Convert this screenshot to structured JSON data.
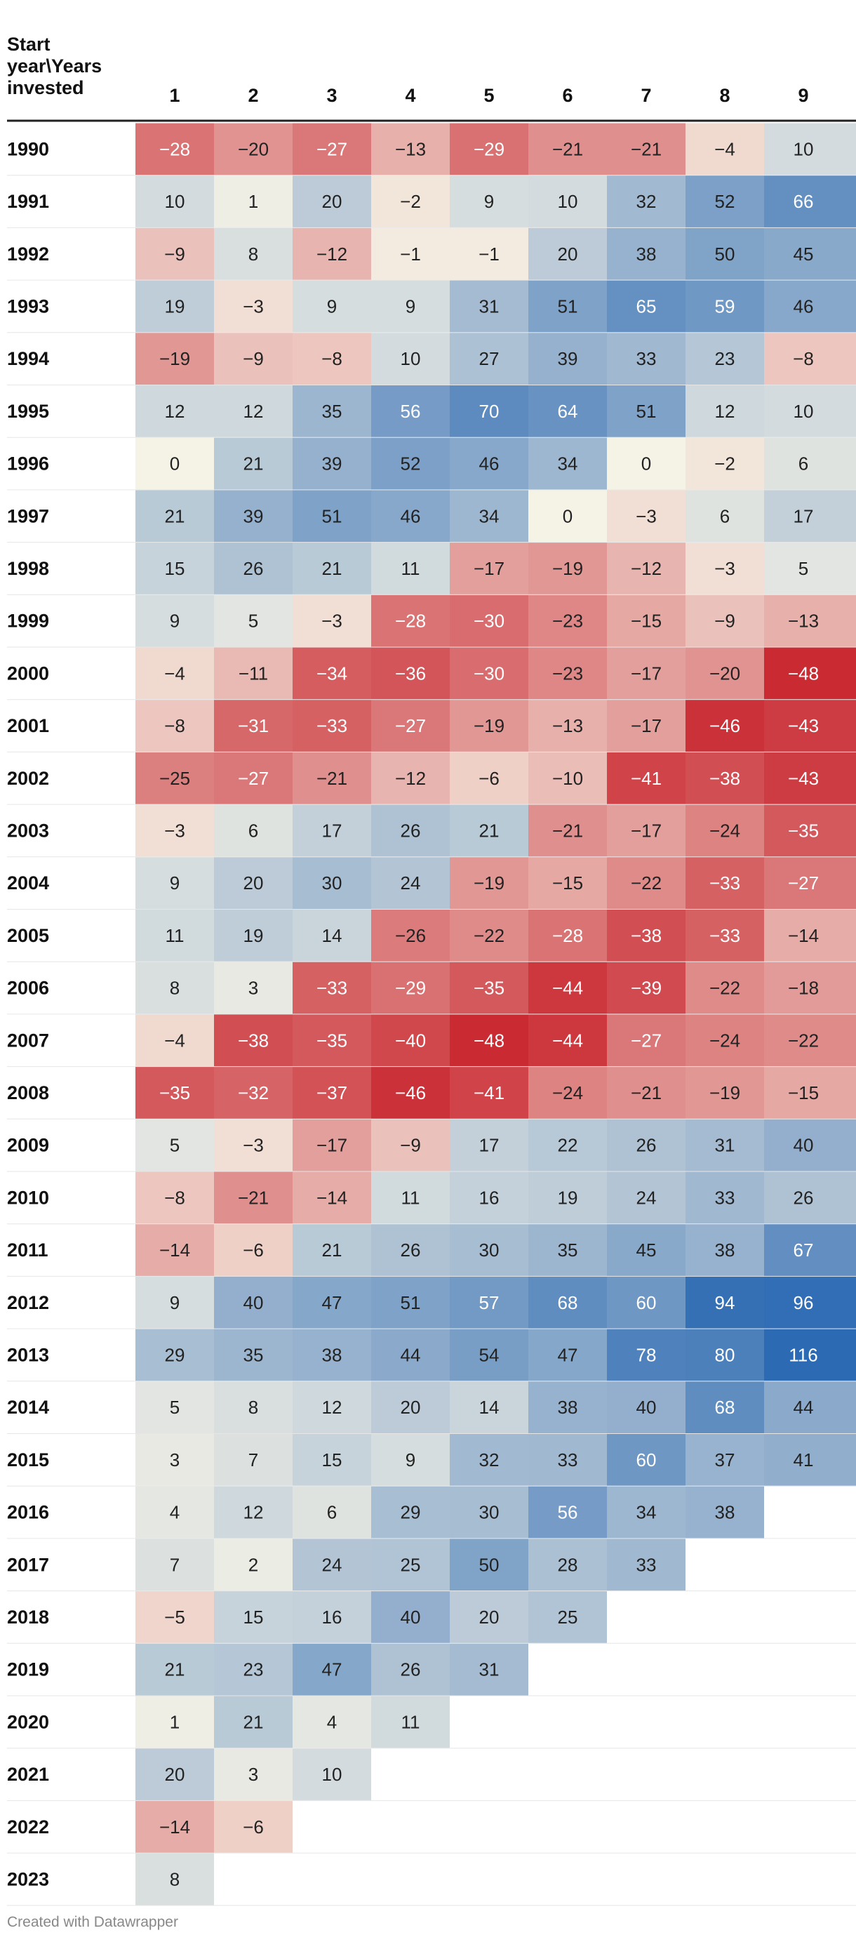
{
  "chart_data": {
    "type": "table",
    "title": "",
    "corner_header": [
      "Start",
      "year\\Years",
      "invested"
    ],
    "columns": [
      "1",
      "2",
      "3",
      "4",
      "5",
      "6",
      "7",
      "8",
      "9"
    ],
    "rows": [
      {
        "year": "1990",
        "values": [
          -28,
          -20,
          -27,
          -13,
          -29,
          -21,
          -21,
          -4,
          10
        ]
      },
      {
        "year": "1991",
        "values": [
          10,
          1,
          20,
          -2,
          9,
          10,
          32,
          52,
          66
        ]
      },
      {
        "year": "1992",
        "values": [
          -9,
          8,
          -12,
          -1,
          -1,
          20,
          38,
          50,
          45
        ]
      },
      {
        "year": "1993",
        "values": [
          19,
          -3,
          9,
          9,
          31,
          51,
          65,
          59,
          46
        ]
      },
      {
        "year": "1994",
        "values": [
          -19,
          -9,
          -8,
          10,
          27,
          39,
          33,
          23,
          -8
        ]
      },
      {
        "year": "1995",
        "values": [
          12,
          12,
          35,
          56,
          70,
          64,
          51,
          12,
          10
        ]
      },
      {
        "year": "1996",
        "values": [
          0,
          21,
          39,
          52,
          46,
          34,
          0,
          -2,
          6
        ]
      },
      {
        "year": "1997",
        "values": [
          21,
          39,
          51,
          46,
          34,
          0,
          -3,
          6,
          17
        ]
      },
      {
        "year": "1998",
        "values": [
          15,
          26,
          21,
          11,
          -17,
          -19,
          -12,
          -3,
          5
        ]
      },
      {
        "year": "1999",
        "values": [
          9,
          5,
          -3,
          -28,
          -30,
          -23,
          -15,
          -9,
          -13
        ]
      },
      {
        "year": "2000",
        "values": [
          -4,
          -11,
          -34,
          -36,
          -30,
          -23,
          -17,
          -20,
          -48
        ]
      },
      {
        "year": "2001",
        "values": [
          -8,
          -31,
          -33,
          -27,
          -19,
          -13,
          -17,
          -46,
          -43
        ]
      },
      {
        "year": "2002",
        "values": [
          -25,
          -27,
          -21,
          -12,
          -6,
          -10,
          -41,
          -38,
          -43
        ]
      },
      {
        "year": "2003",
        "values": [
          -3,
          6,
          17,
          26,
          21,
          -21,
          -17,
          -24,
          -35
        ]
      },
      {
        "year": "2004",
        "values": [
          9,
          20,
          30,
          24,
          -19,
          -15,
          -22,
          -33,
          -27
        ]
      },
      {
        "year": "2005",
        "values": [
          11,
          19,
          14,
          -26,
          -22,
          -28,
          -38,
          -33,
          -14
        ]
      },
      {
        "year": "2006",
        "values": [
          8,
          3,
          -33,
          -29,
          -35,
          -44,
          -39,
          -22,
          -18
        ]
      },
      {
        "year": "2007",
        "values": [
          -4,
          -38,
          -35,
          -40,
          -48,
          -44,
          -27,
          -24,
          -22
        ]
      },
      {
        "year": "2008",
        "values": [
          -35,
          -32,
          -37,
          -46,
          -41,
          -24,
          -21,
          -19,
          -15
        ]
      },
      {
        "year": "2009",
        "values": [
          5,
          -3,
          -17,
          -9,
          17,
          22,
          26,
          31,
          40
        ]
      },
      {
        "year": "2010",
        "values": [
          -8,
          -21,
          -14,
          11,
          16,
          19,
          24,
          33,
          26
        ]
      },
      {
        "year": "2011",
        "values": [
          -14,
          -6,
          21,
          26,
          30,
          35,
          45,
          38,
          67
        ]
      },
      {
        "year": "2012",
        "values": [
          9,
          40,
          47,
          51,
          57,
          68,
          60,
          94,
          96
        ]
      },
      {
        "year": "2013",
        "values": [
          29,
          35,
          38,
          44,
          54,
          47,
          78,
          80,
          116
        ]
      },
      {
        "year": "2014",
        "values": [
          5,
          8,
          12,
          20,
          14,
          38,
          40,
          68,
          44
        ]
      },
      {
        "year": "2015",
        "values": [
          3,
          7,
          15,
          9,
          32,
          33,
          60,
          37,
          41
        ]
      },
      {
        "year": "2016",
        "values": [
          4,
          12,
          6,
          29,
          30,
          56,
          34,
          38
        ]
      },
      {
        "year": "2017",
        "values": [
          7,
          2,
          24,
          25,
          50,
          28,
          33
        ]
      },
      {
        "year": "2018",
        "values": [
          -5,
          15,
          16,
          40,
          20,
          25
        ]
      },
      {
        "year": "2019",
        "values": [
          21,
          23,
          47,
          26,
          31
        ]
      },
      {
        "year": "2020",
        "values": [
          1,
          21,
          4,
          11
        ]
      },
      {
        "year": "2021",
        "values": [
          20,
          3,
          10
        ]
      },
      {
        "year": "2022",
        "values": [
          -14,
          -6
        ]
      },
      {
        "year": "2023",
        "values": [
          8
        ]
      }
    ],
    "color_scale": {
      "negative": "#c8232c",
      "neutral": "#f5f2e6",
      "positive": "#2c6ab3",
      "neg_limit": -50,
      "pos_limit": 100
    }
  },
  "footer": "Created with Datawrapper"
}
